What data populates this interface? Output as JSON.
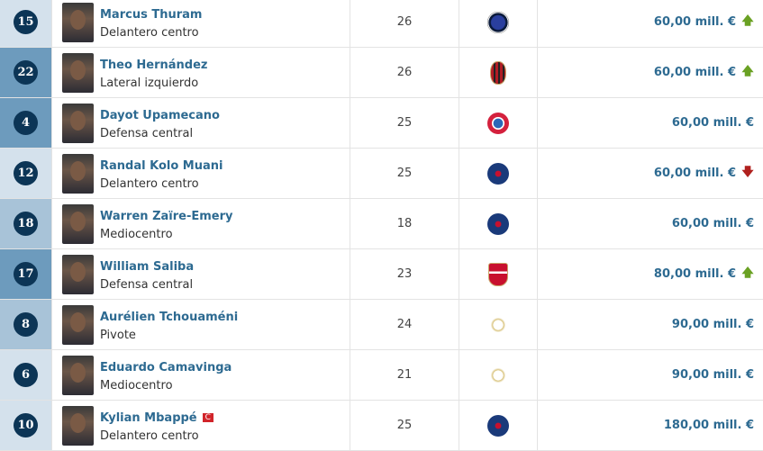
{
  "colors": {
    "light": "#d4e1ec",
    "medium": "#a8c3d8",
    "dark": "#6d9bbd",
    "up": "#6aa123",
    "down": "#b0201e"
  },
  "players": [
    {
      "number": "15",
      "name": "Marcus Thuram",
      "position": "Delantero centro",
      "age": "26",
      "club": "inter-crest",
      "value": "60,00 mill. €",
      "trend": "up",
      "shade": "light"
    },
    {
      "number": "22",
      "name": "Theo Hernández",
      "position": "Lateral izquierdo",
      "age": "26",
      "club": "milan-crest",
      "value": "60,00 mill. €",
      "trend": "up",
      "shade": "dark"
    },
    {
      "number": "4",
      "name": "Dayot Upamecano",
      "position": "Defensa central",
      "age": "25",
      "club": "bayern-crest",
      "value": "60,00 mill. €",
      "trend": "",
      "shade": "dark"
    },
    {
      "number": "12",
      "name": "Randal Kolo Muani",
      "position": "Delantero centro",
      "age": "25",
      "club": "psg-crest",
      "value": "60,00 mill. €",
      "trend": "down",
      "shade": "light"
    },
    {
      "number": "18",
      "name": "Warren Zaïre-Emery",
      "position": "Mediocentro",
      "age": "18",
      "club": "psg-crest",
      "value": "60,00 mill. €",
      "trend": "",
      "shade": "medium"
    },
    {
      "number": "17",
      "name": "William Saliba",
      "position": "Defensa central",
      "age": "23",
      "club": "arsenal-crest",
      "value": "80,00 mill. €",
      "trend": "up",
      "shade": "dark"
    },
    {
      "number": "8",
      "name": "Aurélien Tchouaméni",
      "position": "Pivote",
      "age": "24",
      "club": "real-madrid-crest",
      "value": "90,00 mill. €",
      "trend": "",
      "shade": "medium"
    },
    {
      "number": "6",
      "name": "Eduardo Camavinga",
      "position": "Mediocentro",
      "age": "21",
      "club": "real-madrid-crest",
      "value": "90,00 mill. €",
      "trend": "",
      "shade": "light"
    },
    {
      "number": "10",
      "name": "Kylian Mbappé",
      "position": "Delantero centro",
      "age": "25",
      "club": "psg-crest",
      "value": "180,00 mill. €",
      "trend": "",
      "shade": "light",
      "captain": "C"
    }
  ]
}
